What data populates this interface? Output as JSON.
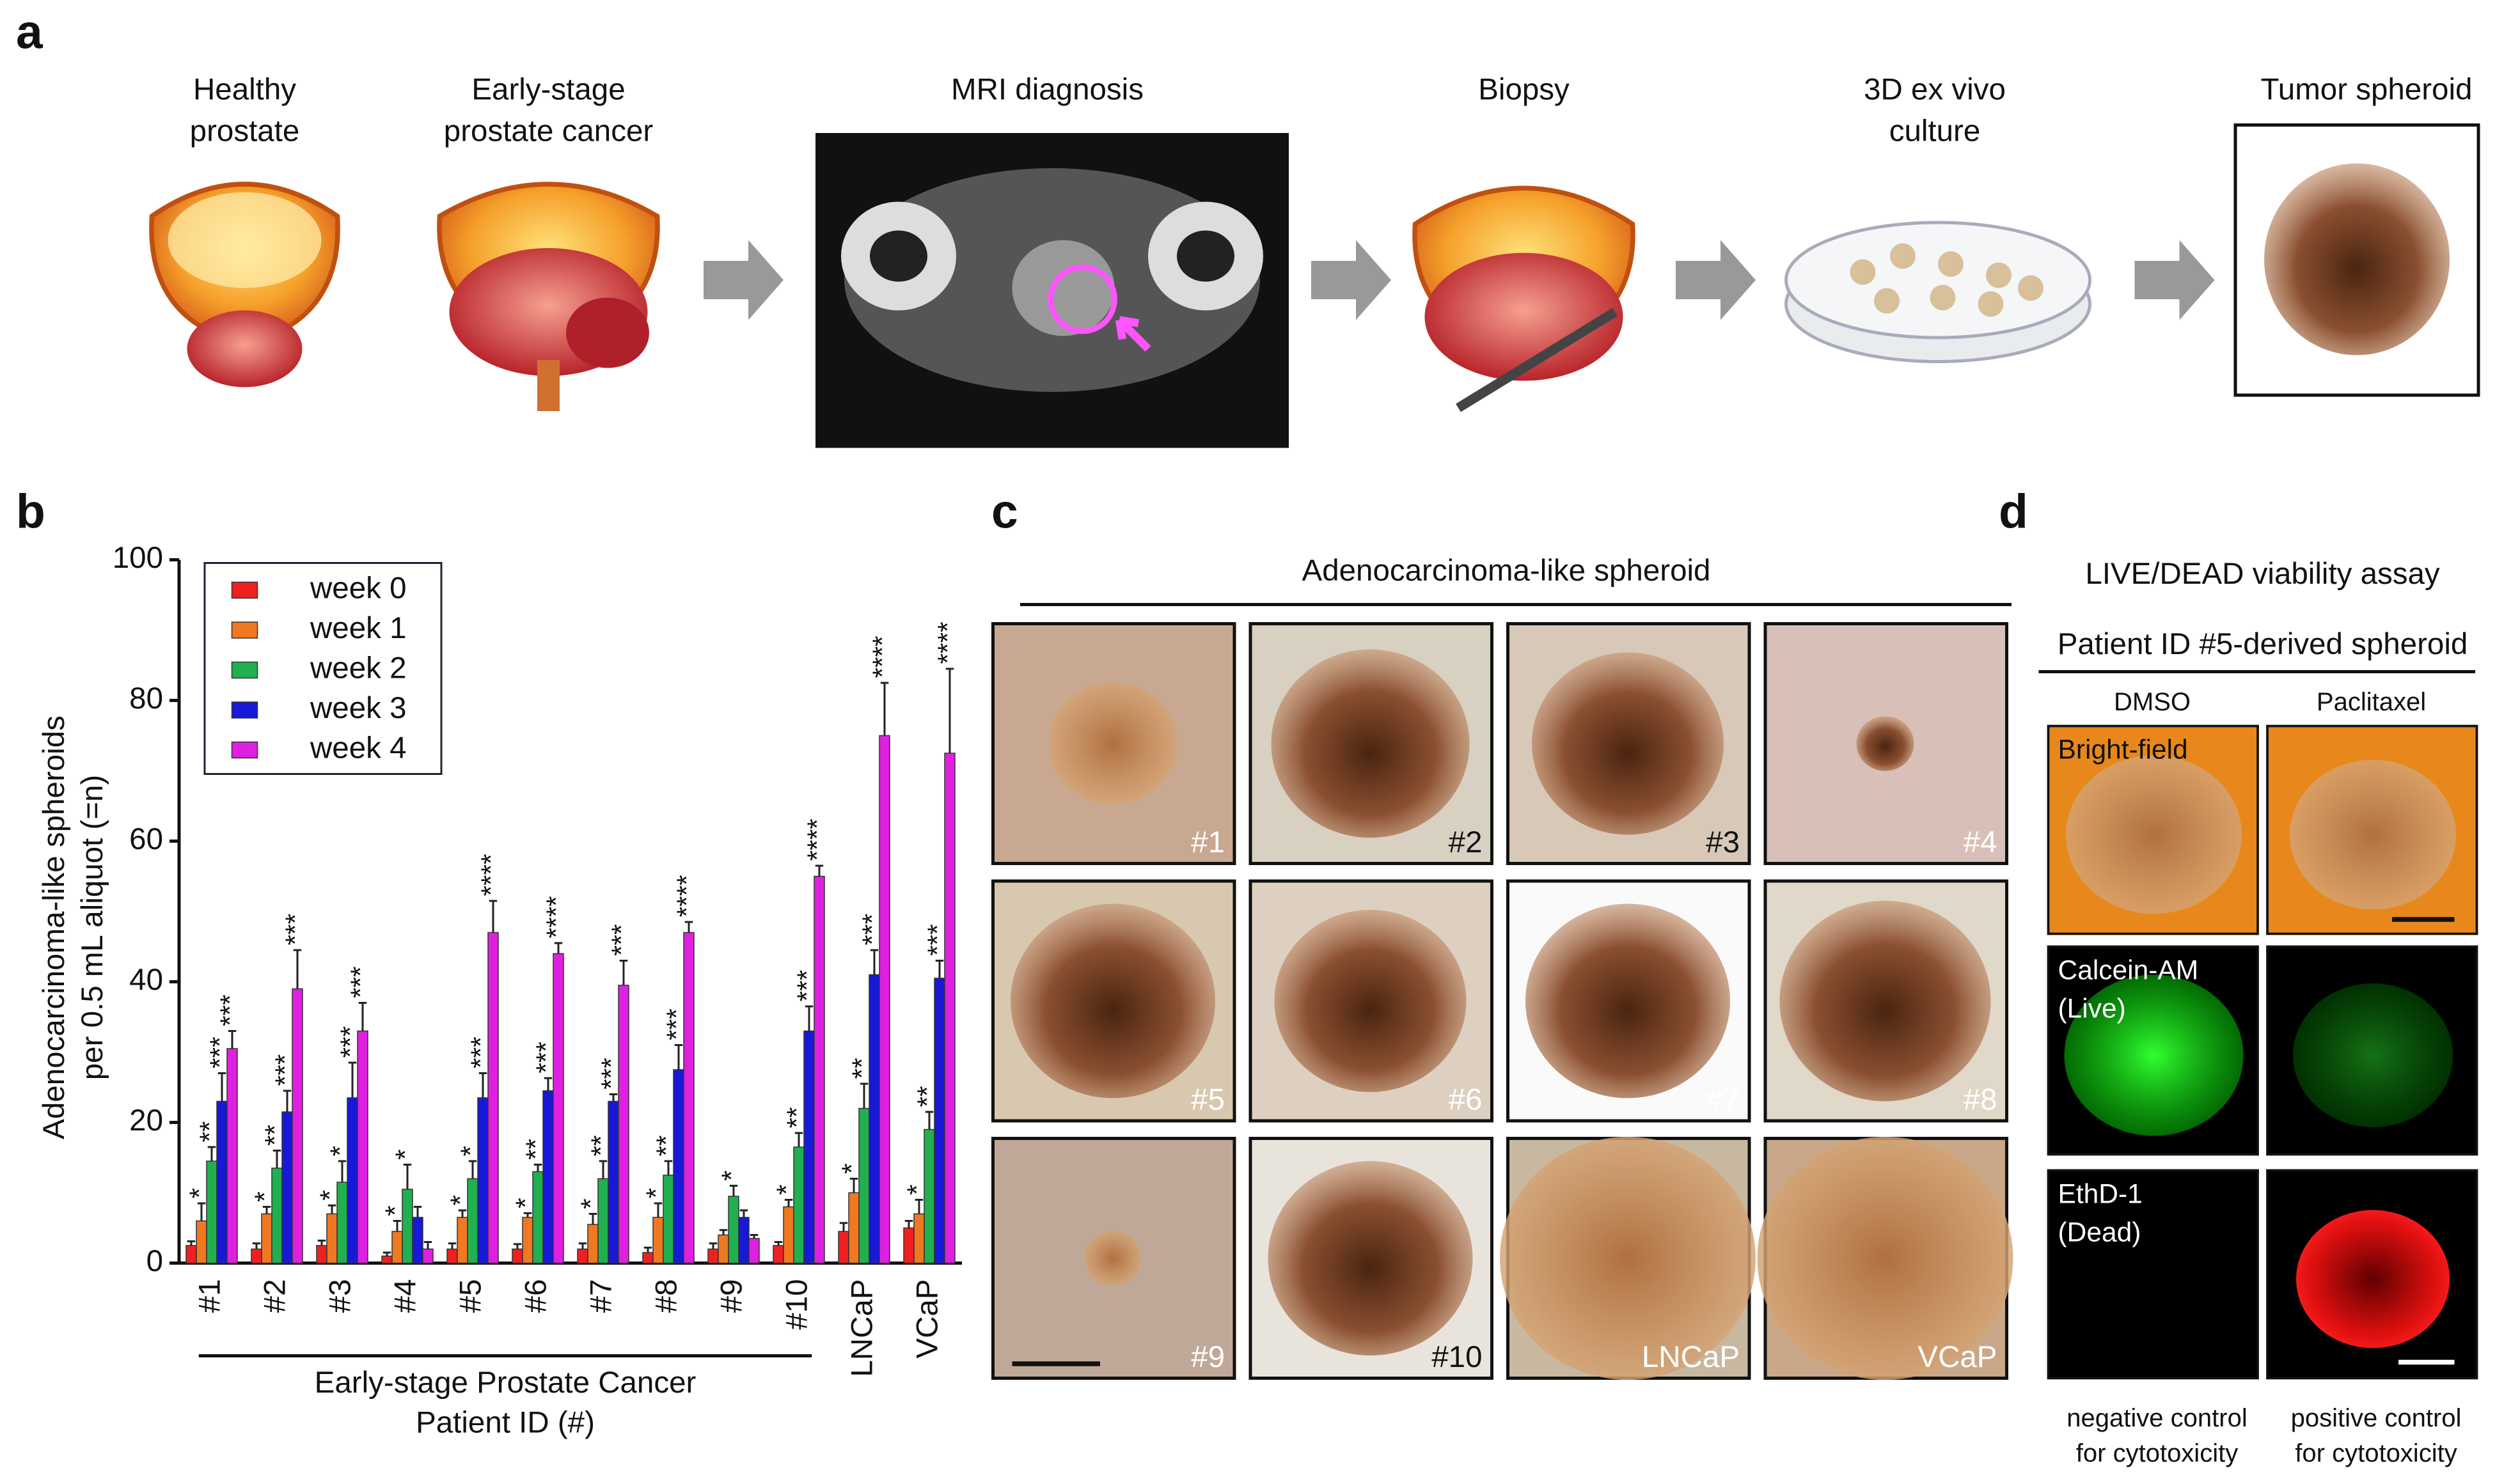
{
  "panel_a": {
    "letter": "a",
    "steps": [
      {
        "label": [
          "Healthy",
          "prostate"
        ]
      },
      {
        "label": [
          "Early-stage",
          "prostate cancer"
        ]
      },
      {
        "label": [
          "MRI diagnosis"
        ]
      },
      {
        "label": [
          "Biopsy"
        ]
      },
      {
        "label": [
          "3D ex vivo",
          "culture"
        ]
      },
      {
        "label": [
          "Tumor spheroid"
        ]
      }
    ]
  },
  "chart_data": {
    "type": "bar",
    "letter": "b",
    "y_label": [
      "Adenocarcinoma-like spheroids",
      "per 0.5 mL aliquot (=n)"
    ],
    "group_label": [
      "Early-stage Prostate Cancer",
      "Patient ID (#)"
    ],
    "categories": [
      "#1",
      "#2",
      "#3",
      "#4",
      "#5",
      "#6",
      "#7",
      "#8",
      "#9",
      "#10",
      "LNCaP",
      "VCaP"
    ],
    "series": [
      {
        "name": "week 0",
        "color": "#f02020",
        "values": [
          2.5,
          2,
          2.5,
          1,
          2,
          2,
          2,
          1.5,
          2,
          2.5,
          4.5,
          5
        ],
        "errors": [
          0.6,
          0.8,
          0.7,
          0.5,
          0.8,
          0.7,
          0.8,
          0.7,
          0.8,
          0.5,
          1.2,
          1
        ],
        "significance": [
          null,
          null,
          null,
          null,
          null,
          null,
          null,
          null,
          null,
          null,
          null,
          null
        ]
      },
      {
        "name": "week 1",
        "color": "#f07820",
        "values": [
          6,
          7,
          7,
          4.5,
          6.5,
          6.5,
          5.5,
          6.5,
          4,
          8,
          10,
          7
        ],
        "errors": [
          2.5,
          1,
          1.2,
          1.5,
          1,
          0.6,
          1.5,
          2,
          0.7,
          1,
          2,
          2
        ],
        "significance": [
          "*",
          "*",
          "*",
          "*",
          "*",
          "*",
          "*",
          "*",
          null,
          "*",
          "*",
          "*"
        ]
      },
      {
        "name": "week 2",
        "color": "#20b050",
        "values": [
          14.5,
          13.5,
          11.5,
          10.5,
          12,
          13,
          12,
          12.5,
          9.5,
          16.5,
          22,
          19
        ],
        "errors": [
          2,
          2.5,
          3,
          3.5,
          2.5,
          1,
          2.5,
          2,
          1.5,
          2,
          3.5,
          2.5
        ],
        "significance": [
          "**",
          "**",
          "*",
          "*",
          "*",
          "**",
          "**",
          "**",
          "*",
          "**",
          "**",
          "**"
        ]
      },
      {
        "name": "week 3",
        "color": "#1818d8",
        "values": [
          23,
          21.5,
          23.5,
          6.5,
          23.5,
          24.5,
          23,
          27.5,
          6.5,
          33,
          41,
          40.5
        ],
        "errors": [
          4,
          3,
          5,
          1.5,
          3.5,
          1.8,
          1,
          3.5,
          1,
          3.5,
          3.5,
          2.5
        ],
        "significance": [
          "***",
          "***",
          "***",
          null,
          "***",
          "***",
          "***",
          "***",
          null,
          "***",
          "***",
          "***"
        ]
      },
      {
        "name": "week 4",
        "color": "#e020e0",
        "values": [
          30.5,
          39,
          33,
          2,
          47,
          44,
          39.5,
          47,
          3.5,
          55,
          75,
          72.5
        ],
        "errors": [
          2.5,
          5.5,
          4,
          1,
          4.5,
          1.5,
          3.5,
          1.5,
          0.5,
          1.5,
          7.5,
          12
        ],
        "significance": [
          "***",
          "***",
          "***",
          null,
          "****",
          "****",
          "***",
          "****",
          null,
          "****",
          "****",
          "****"
        ]
      }
    ],
    "ylim": [
      0,
      100
    ],
    "yticks": [
      0,
      20,
      40,
      60,
      80,
      100
    ],
    "legend": "upper left"
  },
  "panel_c": {
    "letter": "c",
    "title": "Adenocarcinoma-like spheroid",
    "tiles": [
      "#1",
      "#2",
      "#3",
      "#4",
      "#5",
      "#6",
      "#7",
      "#8",
      "#9",
      "#10",
      "LNCaP",
      "VCaP"
    ]
  },
  "panel_d": {
    "letter": "d",
    "title": "LIVE/DEAD viability assay",
    "subtitle": "Patient ID #5-derived spheroid",
    "columns": [
      "DMSO",
      "Paclitaxel"
    ],
    "rows": [
      [
        "Bright-field"
      ],
      [
        "Calcein-AM",
        "(Live)"
      ],
      [
        "EthD-1",
        "(Dead)"
      ]
    ],
    "captions": [
      [
        "negative control",
        "for cytotoxicity"
      ],
      [
        "positive control",
        "for cytotoxicity"
      ]
    ]
  }
}
